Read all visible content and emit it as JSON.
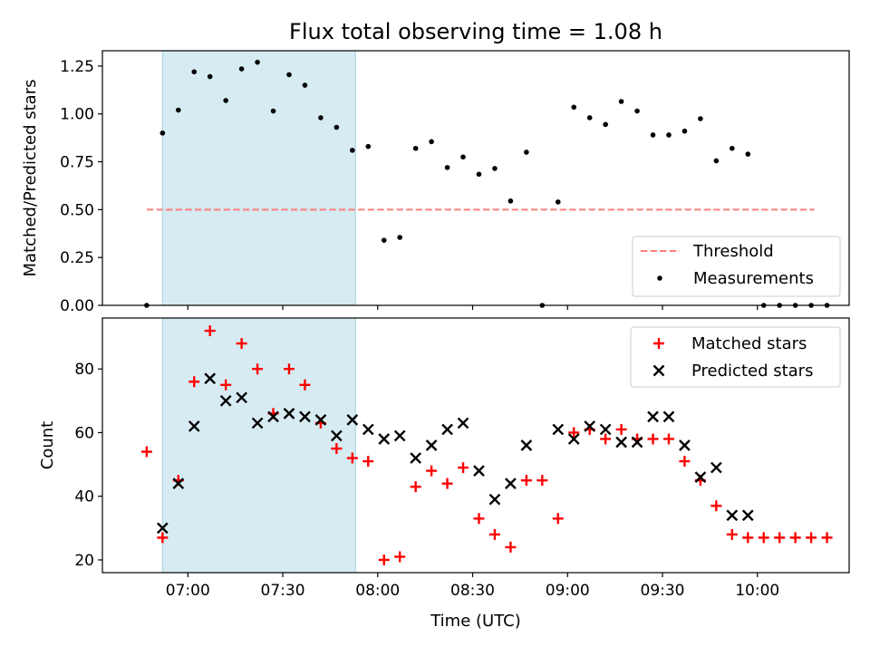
{
  "title": "Flux total observing time = 1.08 h",
  "colors": {
    "band": "#add8e6",
    "threshold": "#ff7f7f",
    "measurement": "#000000",
    "matched": "#ff0000",
    "predicted": "#000000"
  },
  "chart_data": [
    {
      "type": "scatter",
      "ylabel": "Matched/Predicted stars",
      "xlabel": "",
      "grid": false,
      "legend": "bottom-right",
      "ylim": [
        0,
        1.33
      ],
      "xlim": [
        "06:33",
        "10:29"
      ],
      "yticks": [
        "0.00",
        "0.25",
        "0.50",
        "0.75",
        "1.00",
        "1.25"
      ],
      "shaded_region": [
        "06:52",
        "07:53"
      ],
      "threshold": {
        "name": "Threshold",
        "value": 0.5,
        "x": [
          "06:47",
          "10:18"
        ]
      },
      "series": [
        {
          "name": "Measurements",
          "points": [
            [
              "06:47",
              0.0
            ],
            [
              "06:52",
              0.9
            ],
            [
              "06:57",
              1.02
            ],
            [
              "07:02",
              1.22
            ],
            [
              "07:07",
              1.195
            ],
            [
              "07:12",
              1.07
            ],
            [
              "07:17",
              1.235
            ],
            [
              "07:22",
              1.27
            ],
            [
              "07:27",
              1.015
            ],
            [
              "07:32",
              1.205
            ],
            [
              "07:37",
              1.15
            ],
            [
              "07:42",
              0.98
            ],
            [
              "07:47",
              0.93
            ],
            [
              "07:52",
              0.81
            ],
            [
              "07:57",
              0.83
            ],
            [
              "08:02",
              0.34
            ],
            [
              "08:07",
              0.355
            ],
            [
              "08:12",
              0.82
            ],
            [
              "08:17",
              0.855
            ],
            [
              "08:22",
              0.72
            ],
            [
              "08:27",
              0.775
            ],
            [
              "08:32",
              0.685
            ],
            [
              "08:37",
              0.715
            ],
            [
              "08:42",
              0.545
            ],
            [
              "08:47",
              0.8
            ],
            [
              "08:52",
              0.0
            ],
            [
              "08:57",
              0.54
            ],
            [
              "09:02",
              1.035
            ],
            [
              "09:07",
              0.98
            ],
            [
              "09:12",
              0.945
            ],
            [
              "09:17",
              1.065
            ],
            [
              "09:22",
              1.015
            ],
            [
              "09:27",
              0.89
            ],
            [
              "09:32",
              0.89
            ],
            [
              "09:37",
              0.91
            ],
            [
              "09:42",
              0.975
            ],
            [
              "09:47",
              0.755
            ],
            [
              "09:52",
              0.82
            ],
            [
              "09:57",
              0.79
            ],
            [
              "10:02",
              0.0
            ],
            [
              "10:07",
              0.0
            ],
            [
              "10:12",
              0.0
            ],
            [
              "10:17",
              0.0
            ],
            [
              "10:22",
              0.0
            ]
          ]
        }
      ]
    },
    {
      "type": "scatter",
      "ylabel": "Count",
      "xlabel": "Time (UTC)",
      "grid": false,
      "legend": "top-right",
      "ylim": [
        16,
        96
      ],
      "xlim": [
        "06:33",
        "10:29"
      ],
      "yticks": [
        "20",
        "40",
        "60",
        "80"
      ],
      "xticks": [
        "07:00",
        "07:30",
        "08:00",
        "08:30",
        "09:00",
        "09:30",
        "10:00"
      ],
      "shaded_region": [
        "06:52",
        "07:53"
      ],
      "series": [
        {
          "name": "Matched stars",
          "marker": "plus",
          "points": [
            [
              "06:47",
              54
            ],
            [
              "06:52",
              27
            ],
            [
              "06:57",
              45
            ],
            [
              "07:02",
              76
            ],
            [
              "07:07",
              92
            ],
            [
              "07:12",
              75
            ],
            [
              "07:17",
              88
            ],
            [
              "07:22",
              80
            ],
            [
              "07:27",
              66
            ],
            [
              "07:32",
              80
            ],
            [
              "07:37",
              75
            ],
            [
              "07:42",
              63
            ],
            [
              "07:47",
              55
            ],
            [
              "07:52",
              52
            ],
            [
              "07:57",
              51
            ],
            [
              "08:02",
              20
            ],
            [
              "08:07",
              21
            ],
            [
              "08:12",
              43
            ],
            [
              "08:17",
              48
            ],
            [
              "08:22",
              44
            ],
            [
              "08:27",
              49
            ],
            [
              "08:32",
              33
            ],
            [
              "08:37",
              28
            ],
            [
              "08:42",
              24
            ],
            [
              "08:47",
              45
            ],
            [
              "08:52",
              45
            ],
            [
              "08:57",
              33
            ],
            [
              "09:02",
              60
            ],
            [
              "09:07",
              61
            ],
            [
              "09:12",
              58
            ],
            [
              "09:17",
              61
            ],
            [
              "09:22",
              58
            ],
            [
              "09:27",
              58
            ],
            [
              "09:32",
              58
            ],
            [
              "09:37",
              51
            ],
            [
              "09:42",
              45
            ],
            [
              "09:47",
              37
            ],
            [
              "09:52",
              28
            ],
            [
              "09:57",
              27
            ],
            [
              "10:02",
              27
            ],
            [
              "10:07",
              27
            ],
            [
              "10:12",
              27
            ],
            [
              "10:17",
              27
            ],
            [
              "10:22",
              27
            ]
          ]
        },
        {
          "name": "Predicted stars",
          "marker": "x",
          "points": [
            [
              "06:52",
              30
            ],
            [
              "06:57",
              44
            ],
            [
              "07:02",
              62
            ],
            [
              "07:07",
              77
            ],
            [
              "07:12",
              70
            ],
            [
              "07:17",
              71
            ],
            [
              "07:22",
              63
            ],
            [
              "07:27",
              65
            ],
            [
              "07:32",
              66
            ],
            [
              "07:37",
              65
            ],
            [
              "07:42",
              64
            ],
            [
              "07:47",
              59
            ],
            [
              "07:52",
              64
            ],
            [
              "07:57",
              61
            ],
            [
              "08:02",
              58
            ],
            [
              "08:07",
              59
            ],
            [
              "08:12",
              52
            ],
            [
              "08:17",
              56
            ],
            [
              "08:22",
              61
            ],
            [
              "08:27",
              63
            ],
            [
              "08:32",
              48
            ],
            [
              "08:37",
              39
            ],
            [
              "08:42",
              44
            ],
            [
              "08:47",
              56
            ],
            [
              "08:57",
              61
            ],
            [
              "09:02",
              58
            ],
            [
              "09:07",
              62
            ],
            [
              "09:12",
              61
            ],
            [
              "09:17",
              57
            ],
            [
              "09:22",
              57
            ],
            [
              "09:27",
              65
            ],
            [
              "09:32",
              65
            ],
            [
              "09:37",
              56
            ],
            [
              "09:42",
              46
            ],
            [
              "09:47",
              49
            ],
            [
              "09:52",
              34
            ],
            [
              "09:57",
              34
            ]
          ]
        }
      ]
    }
  ]
}
